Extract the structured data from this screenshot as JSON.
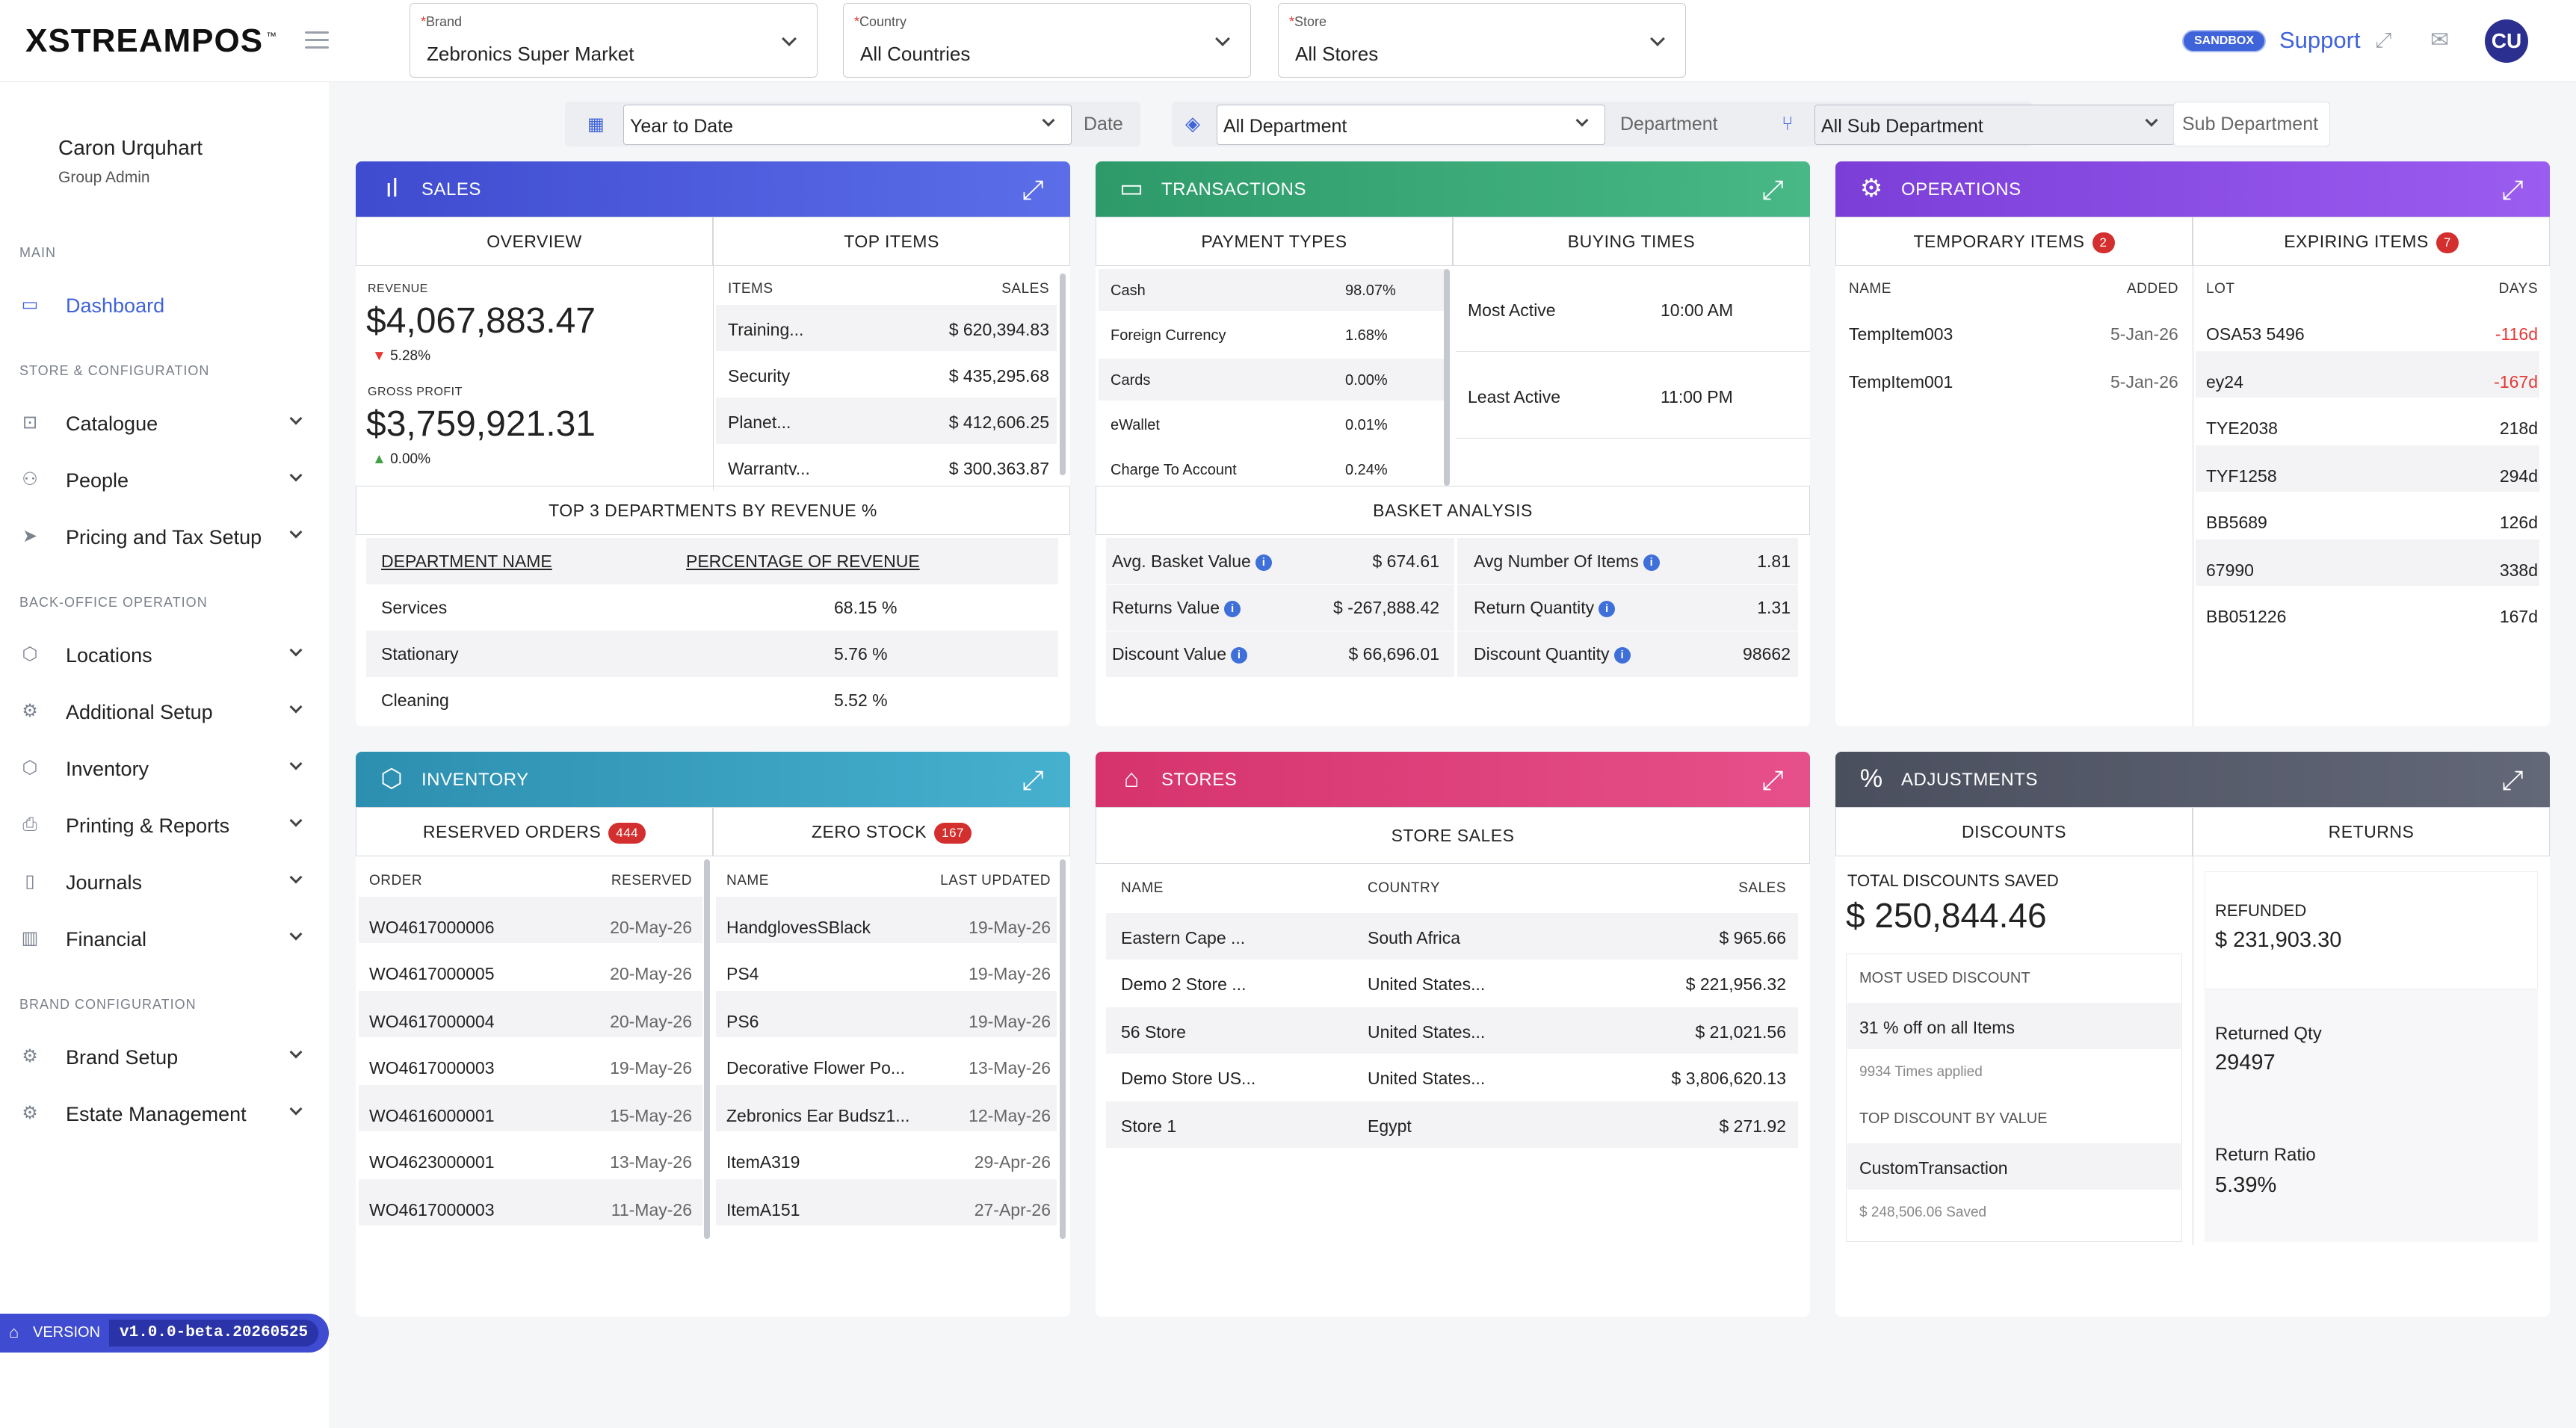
{
  "app": {
    "logo": "XSTREAMPOS",
    "tm": "™"
  },
  "header": {
    "brand": {
      "label": "Brand",
      "value": "Zebronics Super Market"
    },
    "country": {
      "label": "Country",
      "value": "All Countries"
    },
    "store": {
      "label": "Store",
      "value": "All Stores"
    },
    "sandbox": "SANDBOX",
    "support": "Support",
    "avatar": "CU"
  },
  "user": {
    "name": "Caron Urquhart",
    "role": "Group Admin"
  },
  "sidebar": {
    "main_label": "MAIN",
    "dashboard": "Dashboard",
    "store_label": "STORE & CONFIGURATION",
    "store_items": [
      "Catalogue",
      "People",
      "Pricing and Tax Setup"
    ],
    "backoffice_label": "BACK-OFFICE OPERATION",
    "backoffice_items": [
      "Locations",
      "Additional Setup",
      "Inventory",
      "Printing & Reports",
      "Journals",
      "Financial"
    ],
    "brandcfg_label": "BRAND CONFIGURATION",
    "brandcfg_items": [
      "Brand Setup",
      "Estate Management"
    ],
    "version_label": "VERSION",
    "version": "v1.0.0-beta.20260525"
  },
  "filters": {
    "date_value": "Year to Date",
    "date_label": "Date",
    "dept_value": "All Department",
    "dept_label": "Department",
    "subdept_value": "All Sub Department",
    "subdept_label": "Sub Department"
  },
  "sales": {
    "title": "SALES",
    "tab_overview": "OVERVIEW",
    "tab_top": "TOP ITEMS",
    "revenue_label": "REVENUE",
    "revenue": "$4,067,883.47",
    "revenue_change": "5.28%",
    "gp_label": "GROSS PROFIT",
    "gp": "$3,759,921.31",
    "gp_change": "0.00%",
    "items_header": "ITEMS",
    "sales_header": "SALES",
    "top_items": [
      {
        "name": "Training...",
        "sales": "$ 620,394.83"
      },
      {
        "name": "Security",
        "sales": "$ 435,295.68"
      },
      {
        "name": "Planet...",
        "sales": "$ 412,606.25"
      },
      {
        "name": "Warranty...",
        "sales": "$ 300,363.87"
      }
    ],
    "dept_title": "TOP 3 DEPARTMENTS BY REVENUE %",
    "dept_col1": "DEPARTMENT NAME",
    "dept_col2": "PERCENTAGE OF REVENUE",
    "depts": [
      {
        "name": "Services",
        "pct": "68.15 %"
      },
      {
        "name": "Stationary",
        "pct": "5.76 %"
      },
      {
        "name": "Cleaning",
        "pct": "5.52 %"
      }
    ]
  },
  "transactions": {
    "title": "TRANSACTIONS",
    "tab_payment": "PAYMENT TYPES",
    "tab_buying": "BUYING TIMES",
    "payments": [
      {
        "name": "Cash",
        "pct": "98.07%"
      },
      {
        "name": "Foreign Currency",
        "pct": "1.68%"
      },
      {
        "name": "Cards",
        "pct": "0.00%"
      },
      {
        "name": "eWallet",
        "pct": "0.01%"
      },
      {
        "name": "Charge To Account",
        "pct": "0.24%"
      }
    ],
    "most_active_label": "Most Active",
    "most_active": "10:00 AM",
    "least_active_label": "Least Active",
    "least_active": "11:00 PM",
    "basket_title": "BASKET ANALYSIS",
    "basket_left": [
      {
        "label": "Avg. Basket Value",
        "value": "$ 674.61"
      },
      {
        "label": "Returns Value",
        "value": "$ -267,888.42"
      },
      {
        "label": "Discount Value",
        "value": "$ 66,696.01"
      }
    ],
    "basket_right": [
      {
        "label": "Avg Number Of Items",
        "value": "1.81"
      },
      {
        "label": "Return Quantity",
        "value": "1.31"
      },
      {
        "label": "Discount Quantity",
        "value": "98662"
      }
    ]
  },
  "operations": {
    "title": "OPERATIONS",
    "tab_temp": "TEMPORARY ITEMS",
    "temp_count": "2",
    "tab_exp": "EXPIRING ITEMS",
    "exp_count": "7",
    "temp_col1": "NAME",
    "temp_col2": "ADDED",
    "temp_items": [
      {
        "name": "TempItem003",
        "added": "5-Jan-26"
      },
      {
        "name": "TempItem001",
        "added": "5-Jan-26"
      }
    ],
    "exp_col1": "LOT",
    "exp_col2": "DAYS",
    "exp_items": [
      {
        "lot": "OSA53 5496",
        "days": "-116d"
      },
      {
        "lot": "ey24",
        "days": "-167d"
      },
      {
        "lot": "TYE2038",
        "days": "218d"
      },
      {
        "lot": "TYF1258",
        "days": "294d"
      },
      {
        "lot": "BB5689",
        "days": "126d"
      },
      {
        "lot": "67990",
        "days": "338d"
      },
      {
        "lot": "BB051226",
        "days": "167d"
      }
    ]
  },
  "inventory": {
    "title": "INVENTORY",
    "tab_reserved": "RESERVED ORDERS",
    "reserved_count": "444",
    "tab_zero": "ZERO STOCK",
    "zero_count": "167",
    "res_col1": "ORDER",
    "res_col2": "RESERVED",
    "reserved": [
      {
        "order": "WO4617000006",
        "date": "20-May-26"
      },
      {
        "order": "WO4617000005",
        "date": "20-May-26"
      },
      {
        "order": "WO4617000004",
        "date": "20-May-26"
      },
      {
        "order": "WO4617000003",
        "date": "19-May-26"
      },
      {
        "order": "WO4616000001",
        "date": "15-May-26"
      },
      {
        "order": "WO4623000001",
        "date": "13-May-26"
      },
      {
        "order": "WO4617000003",
        "date": "11-May-26"
      }
    ],
    "zero_col1": "NAME",
    "zero_col2": "LAST UPDATED",
    "zero": [
      {
        "name": "HandglovesSBlack",
        "date": "19-May-26"
      },
      {
        "name": "PS4",
        "date": "19-May-26"
      },
      {
        "name": "PS6",
        "date": "19-May-26"
      },
      {
        "name": "Decorative Flower Po...",
        "date": "13-May-26"
      },
      {
        "name": "Zebronics Ear Budsz1...",
        "date": "12-May-26"
      },
      {
        "name": "ItemA319",
        "date": "29-Apr-26"
      },
      {
        "name": "ItemA151",
        "date": "27-Apr-26"
      }
    ]
  },
  "stores": {
    "title": "STORES",
    "tab_sales": "STORE SALES",
    "col1": "NAME",
    "col2": "COUNTRY",
    "col3": "SALES",
    "rows": [
      {
        "name": "Eastern Cape ...",
        "country": "South Africa",
        "sales": "$ 965.66"
      },
      {
        "name": "Demo 2 Store ...",
        "country": "United States...",
        "sales": "$ 221,956.32"
      },
      {
        "name": "56 Store",
        "country": "United States...",
        "sales": "$ 21,021.56"
      },
      {
        "name": "Demo Store US...",
        "country": "United States...",
        "sales": "$ 3,806,620.13"
      },
      {
        "name": "Store 1",
        "country": "Egypt",
        "sales": "$ 271.92"
      }
    ]
  },
  "adjustments": {
    "title": "ADJUSTMENTS",
    "tab_disc": "DISCOUNTS",
    "tab_ret": "RETURNS",
    "total_label": "TOTAL DISCOUNTS SAVED",
    "total": "$ 250,844.46",
    "most_used_label": "MOST USED DISCOUNT",
    "most_used": "31 % off on all Items",
    "most_used_sub": "9934 Times applied",
    "top_value_label": "TOP DISCOUNT BY VALUE",
    "top_value": "CustomTransaction",
    "top_value_sub": "$ 248,506.06 Saved",
    "refunded_label": "REFUNDED",
    "refunded": "$ 231,903.30",
    "ret_qty_label": "Returned Qty",
    "ret_qty": "29497",
    "ret_ratio_label": "Return Ratio",
    "ret_ratio": "5.39%"
  }
}
